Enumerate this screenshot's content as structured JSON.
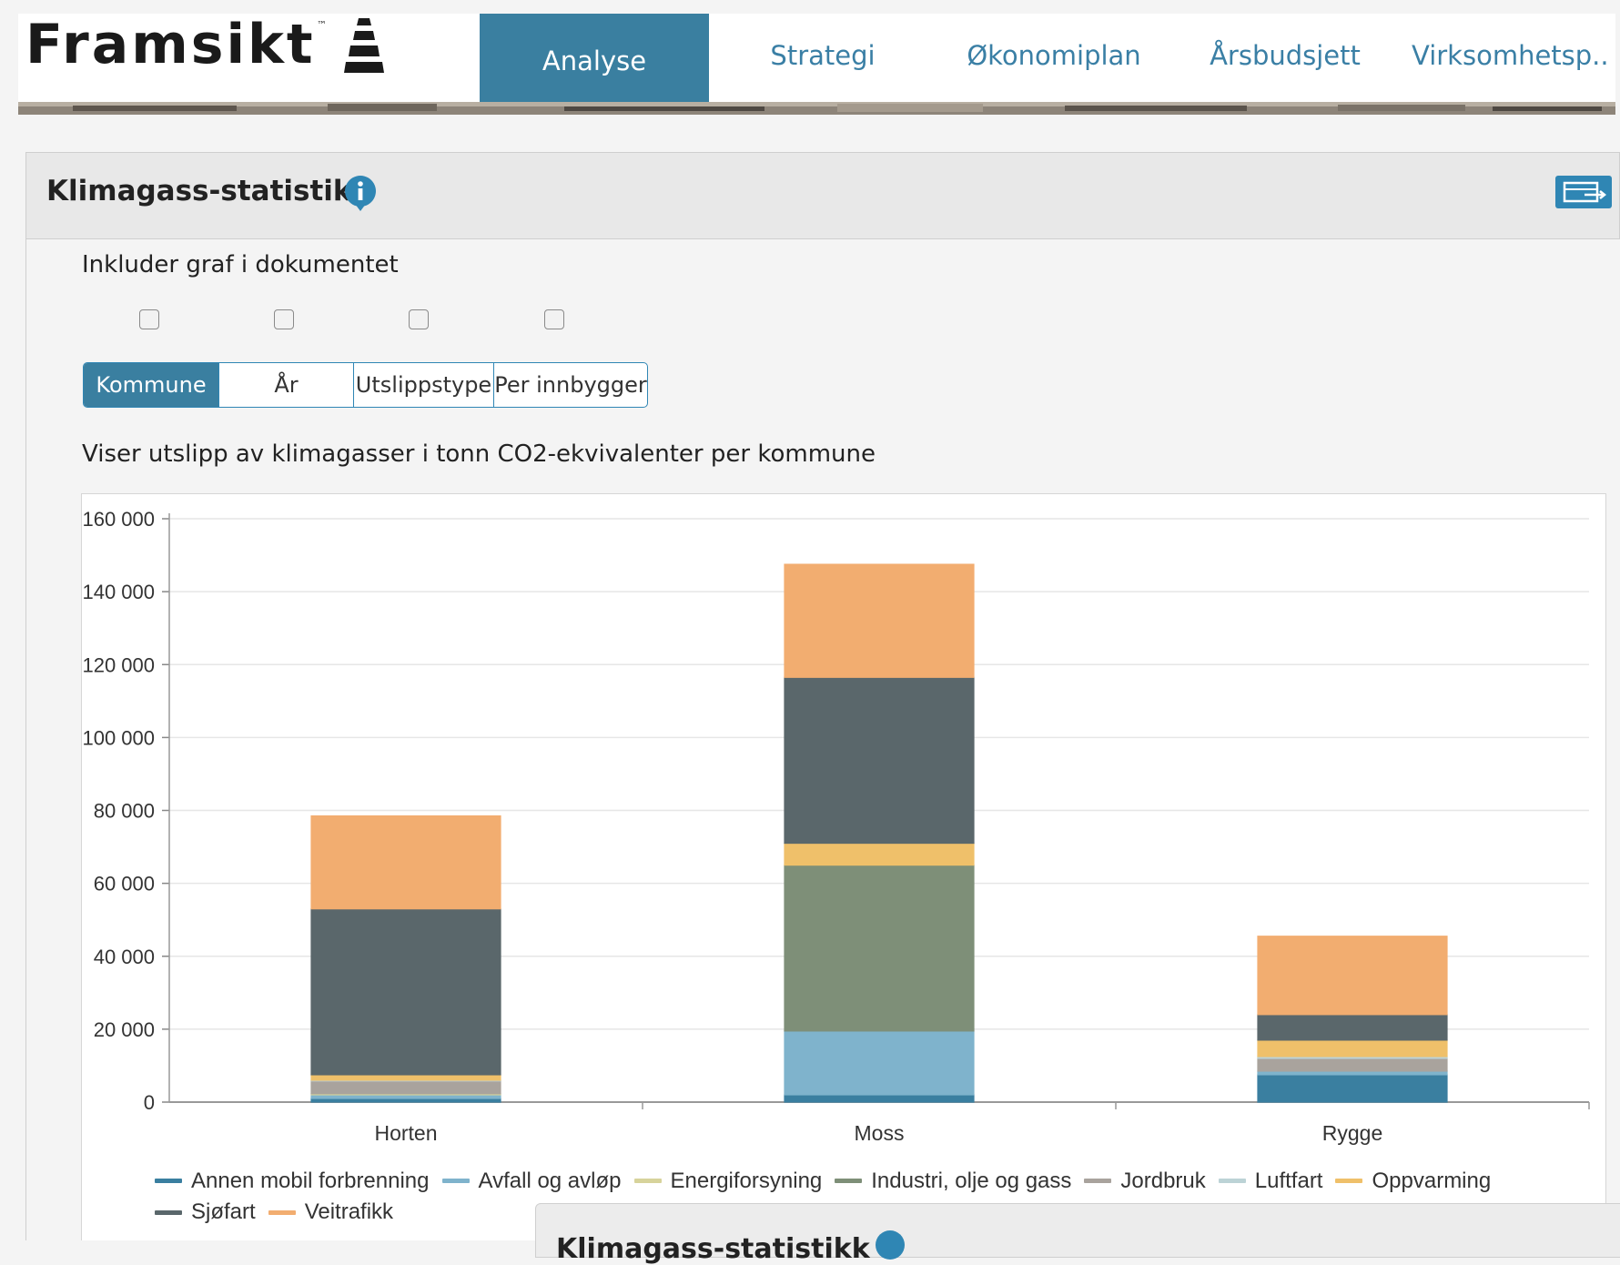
{
  "header": {
    "logo_text": "Framsikt",
    "logo_tm": "™",
    "nav": [
      {
        "label": "Analyse",
        "active": true
      },
      {
        "label": "Strategi",
        "active": false
      },
      {
        "label": "Økonomiplan",
        "active": false
      },
      {
        "label": "Årsbudsjett",
        "active": false
      },
      {
        "label": "Virksomhetsp..",
        "active": false
      }
    ]
  },
  "panel": {
    "title": "Klimagass-statistikk",
    "info_icon": "info-icon",
    "export_icon": "export-icon",
    "include_label": "Inkluder graf i dokumentet",
    "checkboxes": [
      false,
      false,
      false,
      false
    ],
    "segments": [
      {
        "label": "Kommune",
        "active": true
      },
      {
        "label": "År",
        "active": false
      },
      {
        "label": "Utslippstype",
        "active": false
      },
      {
        "label": "Per innbygger",
        "active": false
      }
    ],
    "subtitle": "Viser utslipp av klimagasser i tonn CO2-ekvivalenter per kommune"
  },
  "chart_data": {
    "type": "bar",
    "stacked": true,
    "categories": [
      "Horten",
      "Moss",
      "Rygge"
    ],
    "ylim": [
      0,
      160000
    ],
    "yticks": [
      0,
      20000,
      40000,
      60000,
      80000,
      100000,
      120000,
      140000,
      160000
    ],
    "ytick_labels": [
      "0",
      "20 000",
      "40 000",
      "60 000",
      "80 000",
      "100 000",
      "120 000",
      "140 000",
      "160 000"
    ],
    "grid": true,
    "legend_position": "bottom",
    "series": [
      {
        "name": "Annen mobil forbrenning",
        "color": "#3a7fa0",
        "values": [
          1000,
          2000,
          7500
        ]
      },
      {
        "name": "Avfall og avløp",
        "color": "#7fb3cc",
        "values": [
          1000,
          17500,
          1000
        ]
      },
      {
        "name": "Energiforsyning",
        "color": "#d7d39b",
        "values": [
          300,
          0,
          0
        ]
      },
      {
        "name": "Industri, olje og gass",
        "color": "#7e8f78",
        "values": [
          0,
          45500,
          0
        ]
      },
      {
        "name": "Jordbruk",
        "color": "#a9a39d",
        "values": [
          3500,
          0,
          3500
        ]
      },
      {
        "name": "Luftfart",
        "color": "#bcd3d6",
        "values": [
          200,
          0,
          500
        ]
      },
      {
        "name": "Oppvarming",
        "color": "#efc06a",
        "values": [
          1500,
          6000,
          4500
        ]
      },
      {
        "name": "Sjøfart",
        "color": "#5a676b",
        "values": [
          45500,
          45500,
          7000
        ]
      },
      {
        "name": "Veitrafikk",
        "color": "#f2ad70",
        "values": [
          25500,
          31000,
          21500
        ]
      }
    ]
  },
  "next_panel": {
    "title": "Klimagass-statistikk"
  }
}
